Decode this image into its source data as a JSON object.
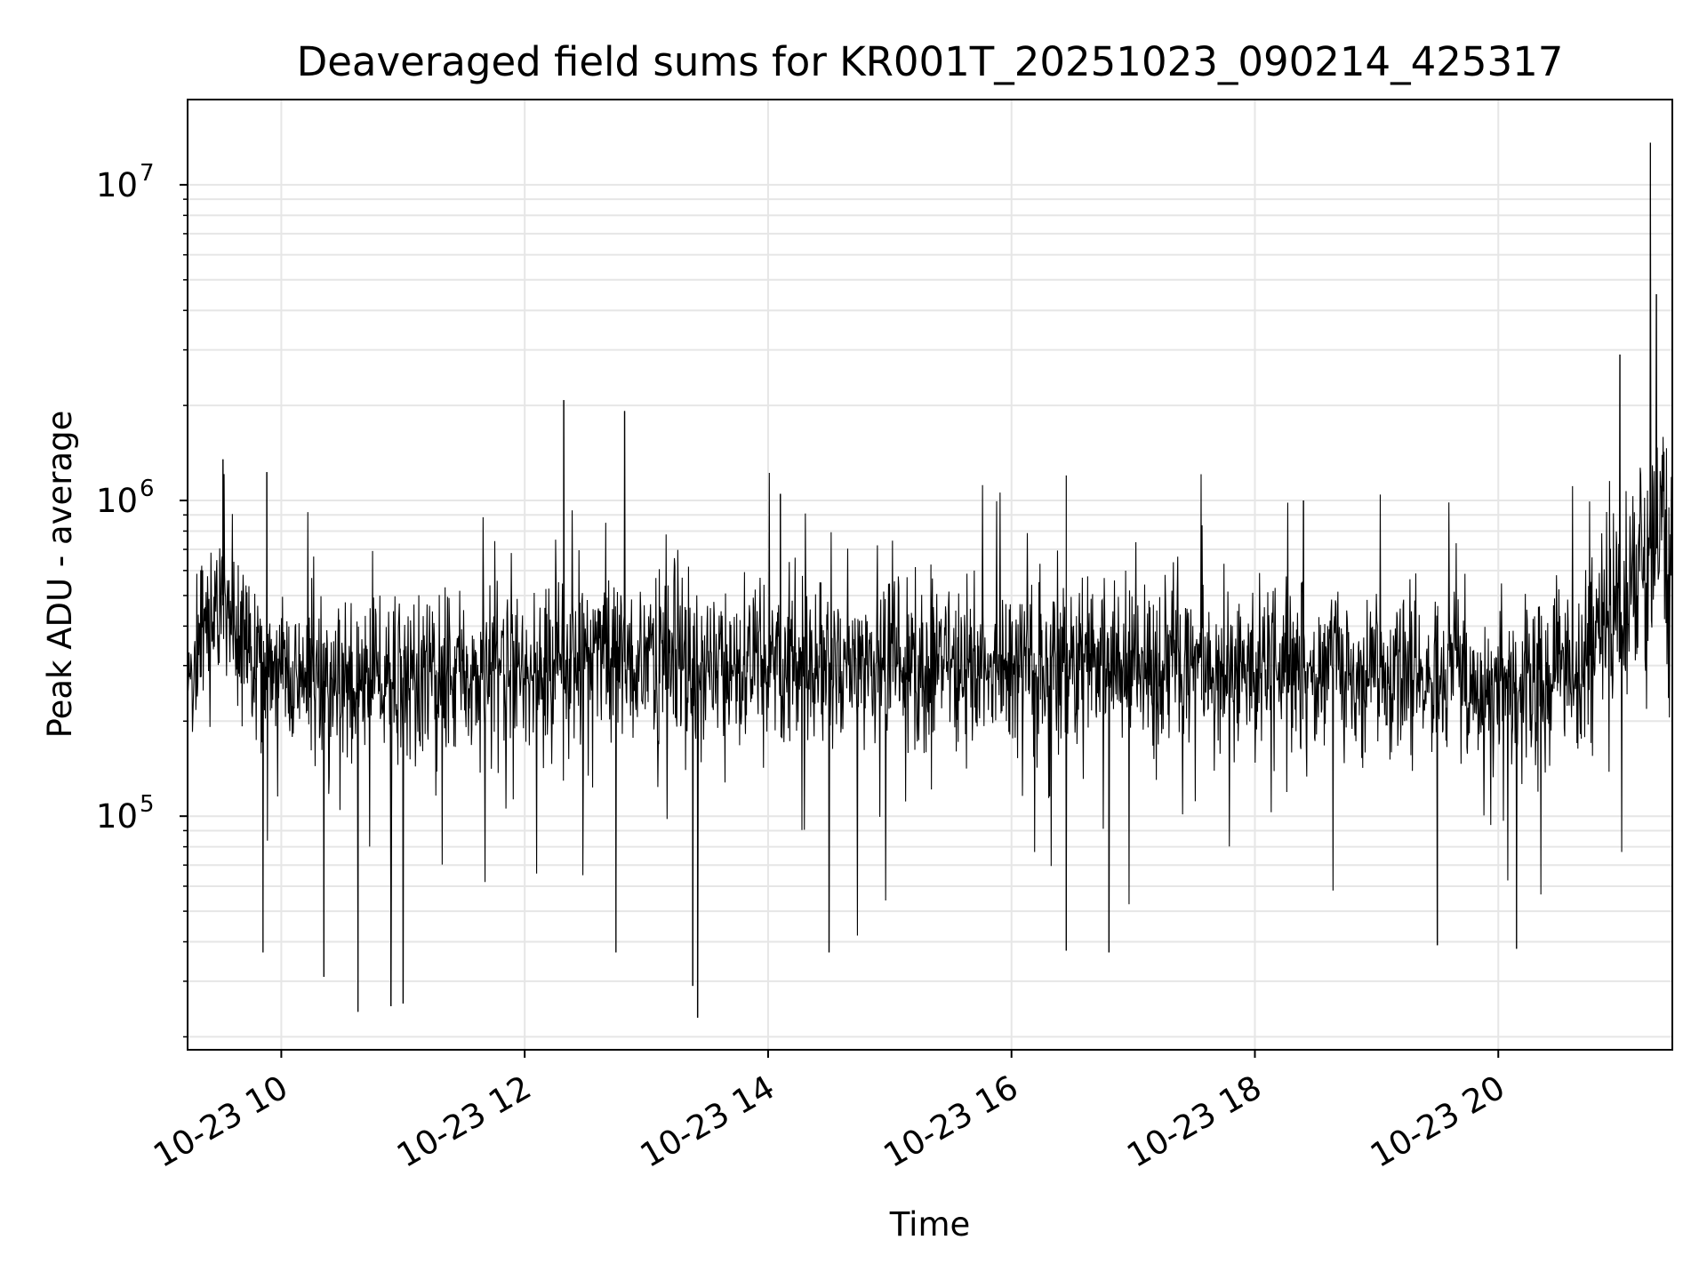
{
  "chart_data": {
    "type": "line",
    "title": "Deaveraged field sums for KR001T_20251023_090214_425317",
    "xlabel": "Time",
    "ylabel": "Peak ADU - average",
    "yscale": "log",
    "xlim": [
      9.23,
      21.43
    ],
    "ylim_log10": [
      4.26,
      7.27
    ],
    "grid": true,
    "x_ticks": [
      {
        "value": 10,
        "label": "10-23 10"
      },
      {
        "value": 12,
        "label": "10-23 12"
      },
      {
        "value": 14,
        "label": "10-23 14"
      },
      {
        "value": 16,
        "label": "10-23 16"
      },
      {
        "value": 18,
        "label": "10-23 18"
      },
      {
        "value": 20,
        "label": "10-23 20"
      }
    ],
    "y_ticks": [
      {
        "value": 100000,
        "base": "10",
        "exp": "5"
      },
      {
        "value": 1000000,
        "base": "10",
        "exp": "6"
      },
      {
        "value": 10000000,
        "base": "10",
        "exp": "7"
      }
    ],
    "series": [
      {
        "name": "field sums",
        "color": "#000000",
        "sample_interval_hours": 0.004,
        "seed": 425317,
        "baseline_profile": [
          {
            "x": 9.23,
            "y": 300000
          },
          {
            "x": 9.5,
            "y": 480000
          },
          {
            "x": 9.8,
            "y": 300000
          },
          {
            "x": 10.5,
            "y": 260000
          },
          {
            "x": 11.5,
            "y": 290000
          },
          {
            "x": 12.5,
            "y": 310000
          },
          {
            "x": 14.0,
            "y": 300000
          },
          {
            "x": 16.0,
            "y": 310000
          },
          {
            "x": 18.0,
            "y": 300000
          },
          {
            "x": 19.5,
            "y": 280000
          },
          {
            "x": 20.3,
            "y": 250000
          },
          {
            "x": 20.7,
            "y": 280000
          },
          {
            "x": 21.0,
            "y": 500000
          },
          {
            "x": 21.43,
            "y": 900000
          }
        ],
        "peaks": [
          {
            "x": 9.52,
            "y": 1350000
          },
          {
            "x": 9.88,
            "y": 1230000
          },
          {
            "x": 12.32,
            "y": 2080000
          },
          {
            "x": 12.82,
            "y": 1920000
          },
          {
            "x": 14.1,
            "y": 1050000
          },
          {
            "x": 16.45,
            "y": 1200000
          },
          {
            "x": 18.4,
            "y": 1000000
          },
          {
            "x": 21.0,
            "y": 2900000
          },
          {
            "x": 21.25,
            "y": 13600000
          },
          {
            "x": 21.3,
            "y": 4500000
          }
        ],
        "troughs": [
          {
            "x": 9.85,
            "y": 37000
          },
          {
            "x": 10.35,
            "y": 31000
          },
          {
            "x": 10.63,
            "y": 24000
          },
          {
            "x": 10.9,
            "y": 25000
          },
          {
            "x": 11.0,
            "y": 25500
          },
          {
            "x": 12.75,
            "y": 37000
          },
          {
            "x": 13.38,
            "y": 29000
          },
          {
            "x": 13.42,
            "y": 23000
          },
          {
            "x": 14.5,
            "y": 37000
          },
          {
            "x": 16.45,
            "y": 37500
          },
          {
            "x": 16.8,
            "y": 37000
          },
          {
            "x": 19.5,
            "y": 39000
          },
          {
            "x": 20.15,
            "y": 38000
          }
        ]
      }
    ]
  }
}
